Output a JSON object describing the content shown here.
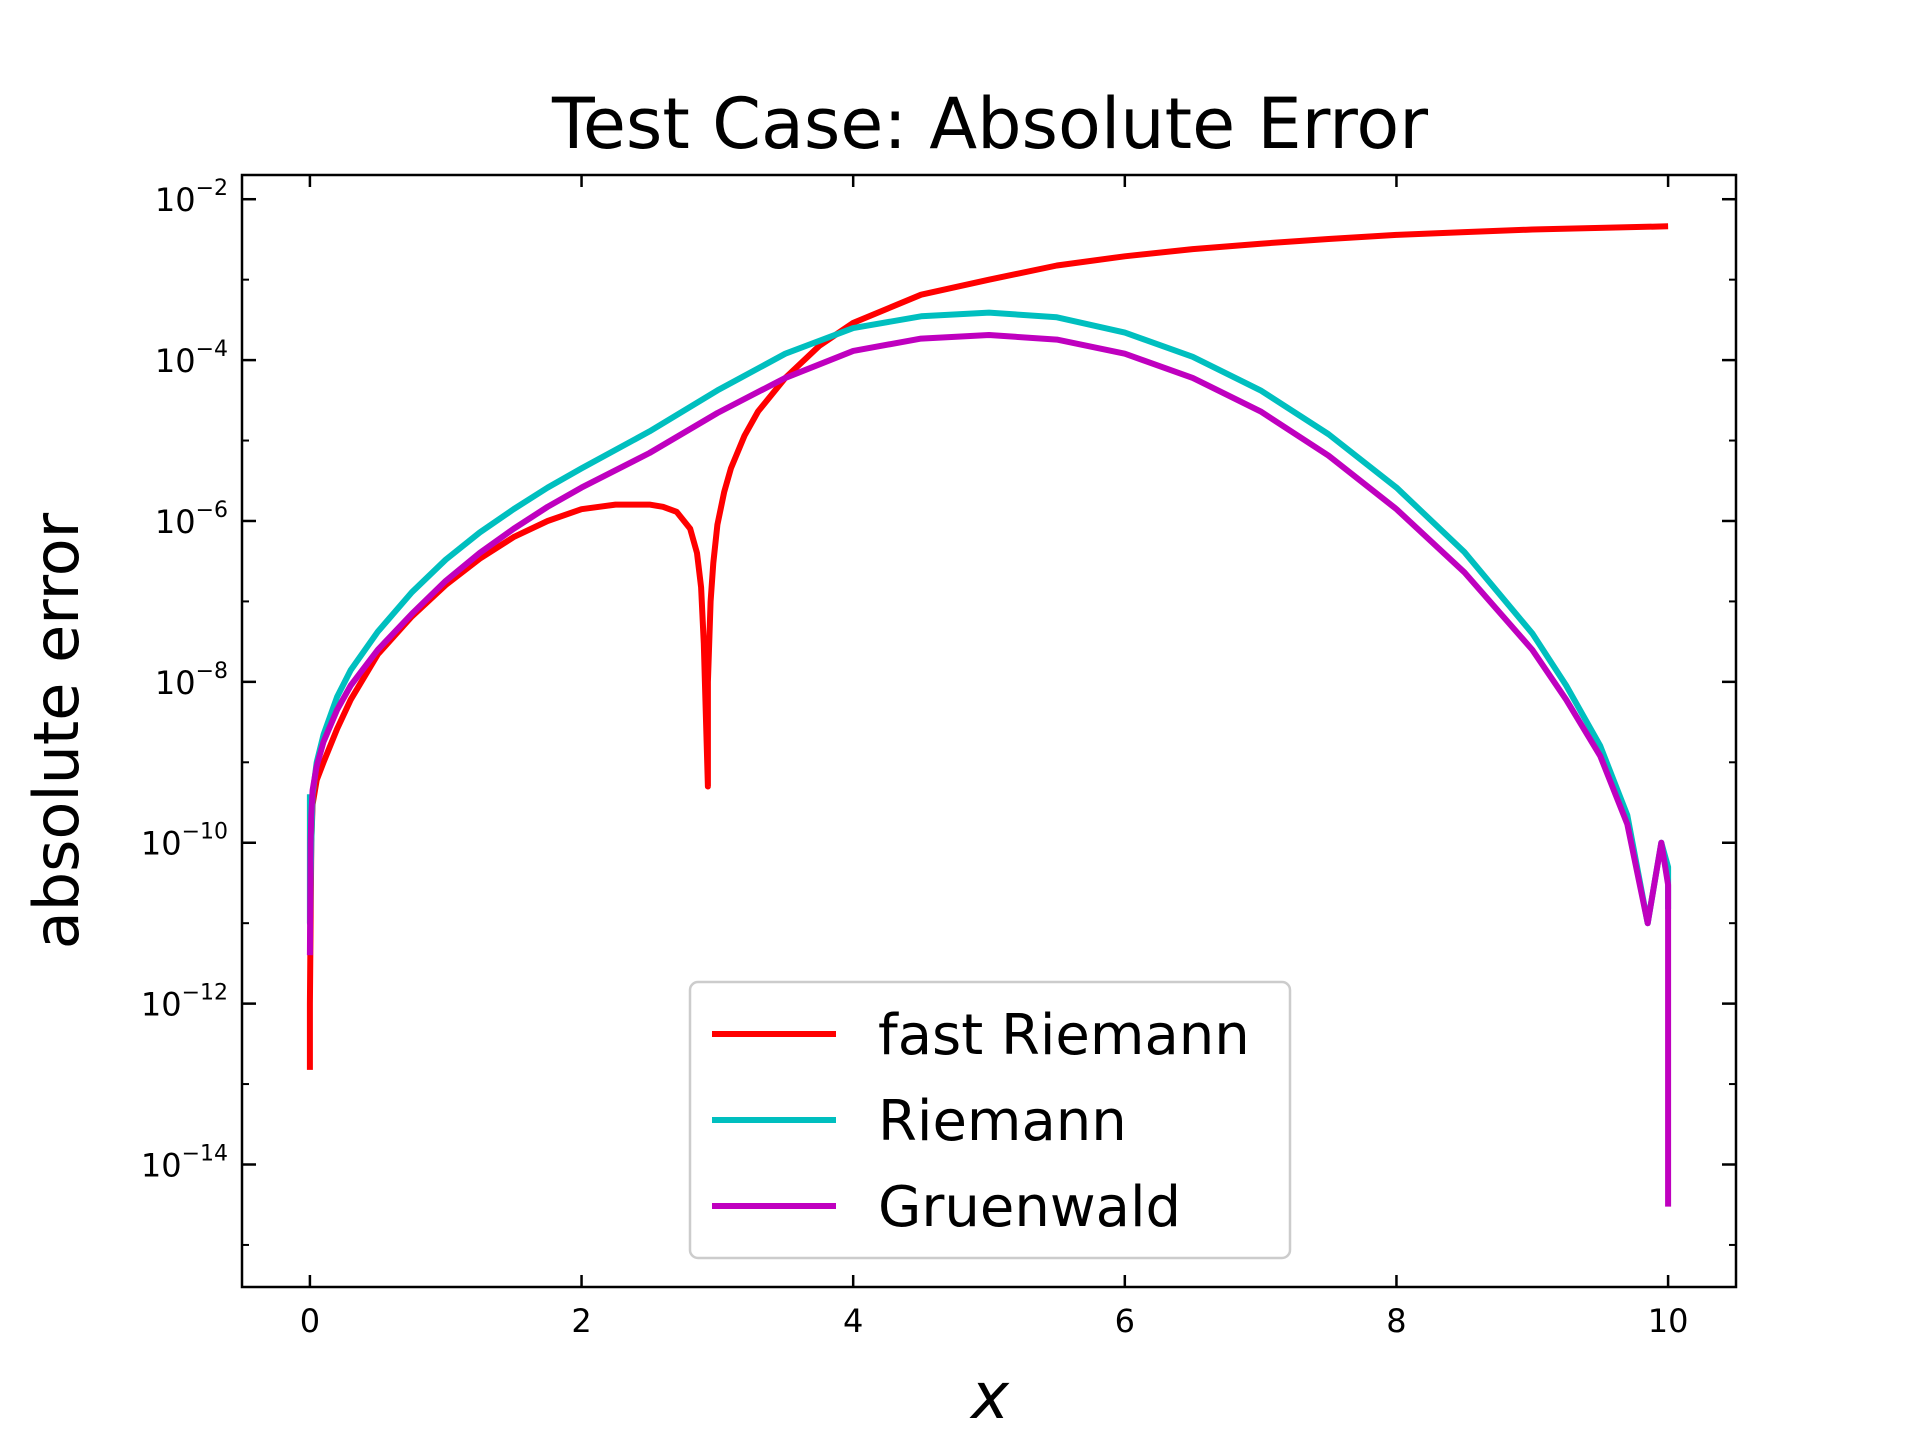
{
  "chart_data": {
    "type": "line",
    "title": "Test Case: Absolute Error",
    "xlabel": "x",
    "ylabel": "absolute error",
    "xlim": [
      -0.5,
      10.5
    ],
    "ylim": [
      3e-16,
      0.02
    ],
    "yscale": "log",
    "grid": false,
    "legend_position": "bottom-center",
    "xticks": [
      {
        "value": 0,
        "label": "0"
      },
      {
        "value": 2,
        "label": "2"
      },
      {
        "value": 4,
        "label": "4"
      },
      {
        "value": 6,
        "label": "6"
      },
      {
        "value": 8,
        "label": "8"
      },
      {
        "value": 10,
        "label": "10"
      }
    ],
    "yticks": [
      {
        "value": 0.01,
        "base": "10",
        "exp": "−2"
      },
      {
        "value": 0.0001,
        "base": "10",
        "exp": "−4"
      },
      {
        "value": 1e-06,
        "base": "10",
        "exp": "−6"
      },
      {
        "value": 1e-08,
        "base": "10",
        "exp": "−8"
      },
      {
        "value": 1e-10,
        "base": "10",
        "exp": "−10"
      },
      {
        "value": 1e-12,
        "base": "10",
        "exp": "−12"
      },
      {
        "value": 1e-14,
        "base": "10",
        "exp": "−14"
      }
    ],
    "series": [
      {
        "name": "fast Riemann",
        "color": "#ff0000",
        "x": [
          0,
          0,
          0.01,
          0.02,
          0.05,
          0.1,
          0.2,
          0.3,
          0.5,
          0.75,
          1.0,
          1.25,
          1.5,
          1.75,
          2.0,
          2.25,
          2.5,
          2.6,
          2.7,
          2.8,
          2.85,
          2.88,
          2.9,
          2.93,
          2.93,
          2.95,
          2.97,
          3.0,
          3.05,
          3.1,
          3.2,
          3.3,
          3.5,
          3.75,
          4.0,
          4.5,
          5.0,
          5.5,
          6.0,
          6.5,
          7.0,
          7.5,
          8.0,
          8.5,
          9.0,
          9.5,
          10.0
        ],
        "y": [
          1.5e-13,
          1e-12,
          1e-10,
          3e-10,
          6e-10,
          1e-09,
          2.6e-09,
          6e-09,
          2.2e-08,
          6.5e-08,
          1.6e-07,
          3.4e-07,
          6.3e-07,
          1e-06,
          1.4e-06,
          1.6e-06,
          1.6e-06,
          1.5e-06,
          1.3e-06,
          8e-07,
          4e-07,
          1.5e-07,
          3e-08,
          5e-10,
          1e-08,
          1e-07,
          3e-07,
          9e-07,
          2.3e-06,
          4.5e-06,
          1.15e-05,
          2.3e-05,
          6e-05,
          0.00015,
          0.00029,
          0.00065,
          0.001,
          0.0015,
          0.00195,
          0.0024,
          0.0028,
          0.0032,
          0.0036,
          0.0039,
          0.0042,
          0.0044,
          0.0046
        ]
      },
      {
        "name": "Riemann",
        "color": "#00bfbf",
        "x": [
          0,
          0,
          0.01,
          0.02,
          0.05,
          0.1,
          0.2,
          0.3,
          0.5,
          0.75,
          1.0,
          1.25,
          1.5,
          1.75,
          2.0,
          2.5,
          3.0,
          3.5,
          4.0,
          4.5,
          5.0,
          5.5,
          6.0,
          6.5,
          7.0,
          7.5,
          8.0,
          8.5,
          9.0,
          9.25,
          9.5,
          9.7,
          9.85,
          9.95,
          10.0,
          10.0
        ],
        "y": [
          4e-10,
          1e-11,
          1e-10,
          4e-10,
          1e-09,
          2.2e-09,
          6.5e-09,
          1.4e-08,
          4.2e-08,
          1.3e-07,
          3.3e-07,
          7.2e-07,
          1.4e-06,
          2.6e-06,
          4.5e-06,
          1.3e-05,
          4.2e-05,
          0.00012,
          0.00025,
          0.00035,
          0.00039,
          0.00034,
          0.00022,
          0.00011,
          4.2e-05,
          1.2e-05,
          2.6e-06,
          4.1e-07,
          4e-08,
          9e-09,
          1.6e-09,
          2.2e-10,
          1e-11,
          1e-10,
          5e-11,
          1.5e-11
        ]
      },
      {
        "name": "Gruenwald",
        "color": "#bf00bf",
        "x": [
          0,
          0.005,
          0.01,
          0.02,
          0.05,
          0.1,
          0.2,
          0.3,
          0.5,
          0.75,
          1.0,
          1.25,
          1.5,
          1.75,
          2.0,
          2.5,
          3.0,
          3.5,
          4.0,
          4.5,
          5.0,
          5.5,
          6.0,
          6.5,
          7.0,
          7.5,
          8.0,
          8.5,
          9.0,
          9.25,
          9.5,
          9.7,
          9.85,
          9.95,
          10.0,
          10.0
        ],
        "y": [
          4e-12,
          1e-10,
          2.2e-10,
          4.5e-10,
          9e-10,
          1.8e-09,
          4.5e-09,
          9e-09,
          2.5e-08,
          7e-08,
          1.8e-07,
          4e-07,
          8e-07,
          1.5e-06,
          2.6e-06,
          7e-06,
          2.2e-05,
          6e-05,
          0.00013,
          0.000185,
          0.000205,
          0.00018,
          0.00012,
          6e-05,
          2.3e-05,
          6.5e-06,
          1.4e-06,
          2.3e-07,
          2.5e-08,
          6e-09,
          1.2e-09,
          1.7e-10,
          1e-11,
          1e-10,
          3e-11,
          3e-15
        ]
      }
    ]
  }
}
